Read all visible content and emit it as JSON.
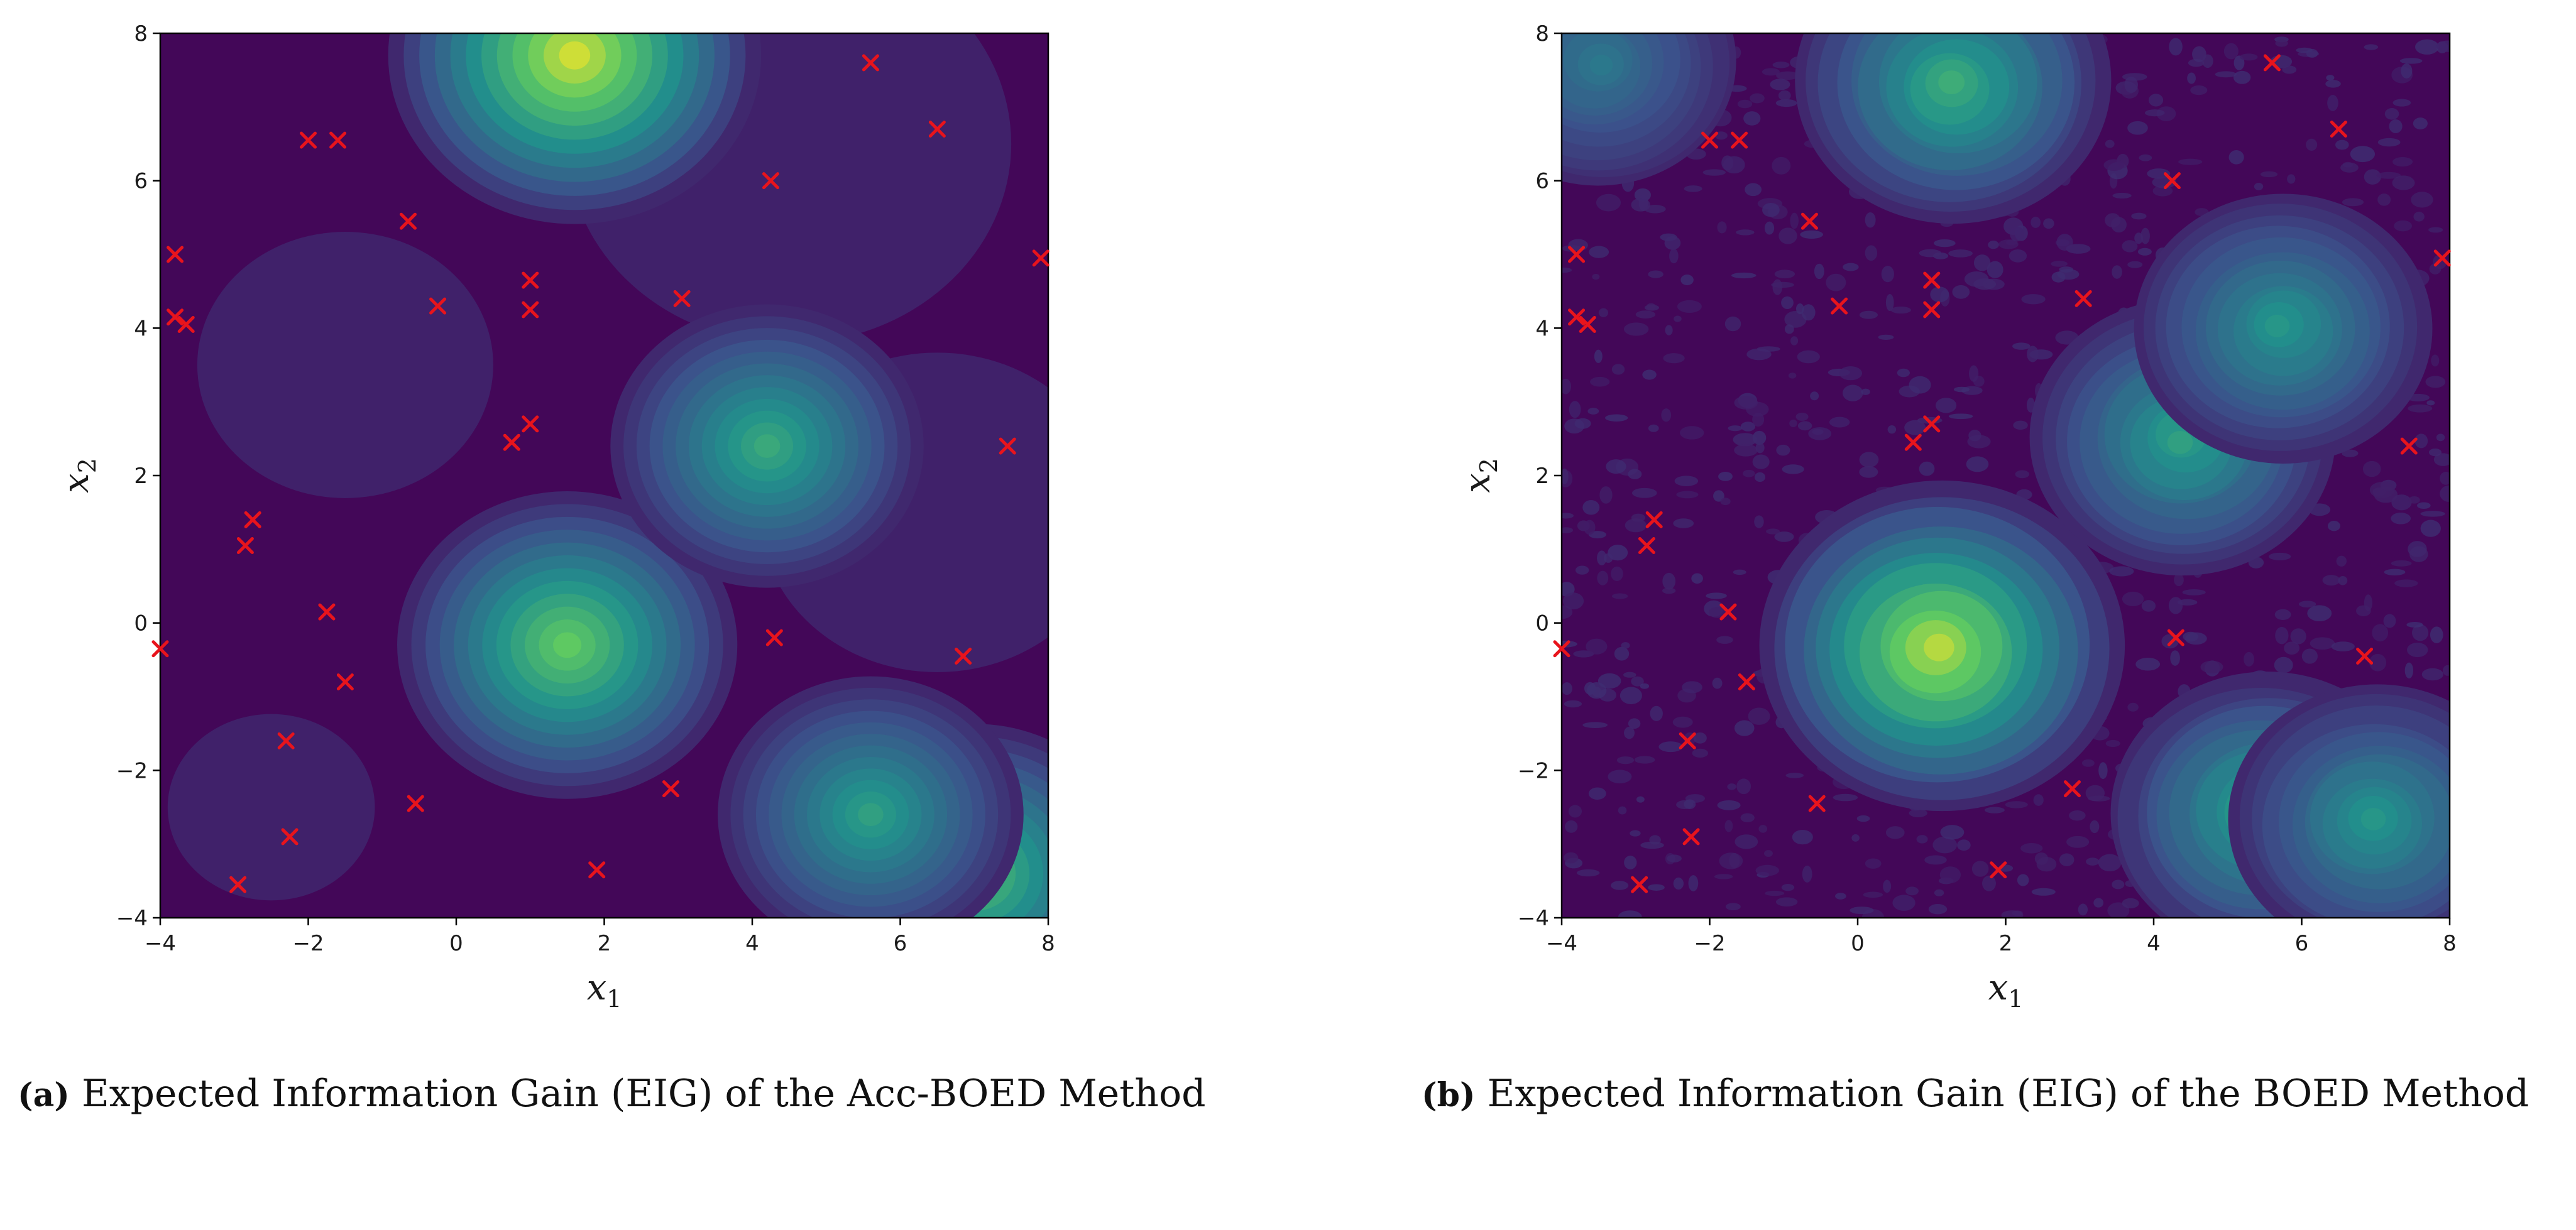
{
  "chart_data": [
    {
      "type": "heatmap",
      "panel": "a",
      "caption_tag": "(a)",
      "caption": "Expected Information Gain (EIG) of the Acc-BOED Method",
      "xlabel": "x1",
      "ylabel": "x2",
      "xlim": [
        -4,
        8
      ],
      "ylim": [
        -4,
        8
      ],
      "xticks": [
        "−4",
        "−2",
        "0",
        "2",
        "4",
        "6",
        "8"
      ],
      "yticks": [
        "−4",
        "−2",
        "0",
        "2",
        "4",
        "6",
        "8"
      ],
      "colormap": "viridis",
      "smooth": true,
      "eig_peaks": [
        {
          "x": 1.6,
          "y": 7.7,
          "value": 1.0
        },
        {
          "x": 1.5,
          "y": -0.3,
          "value": 0.78
        },
        {
          "x": 4.2,
          "y": 2.4,
          "value": 0.6
        },
        {
          "x": 7.0,
          "y": -3.4,
          "value": 0.72
        },
        {
          "x": 5.6,
          "y": -2.6,
          "value": 0.55
        }
      ],
      "design_points_marker": "x",
      "design_points_color": "#e8141c",
      "design_points": [
        [
          5.6,
          7.6
        ],
        [
          -2.0,
          6.55
        ],
        [
          -1.6,
          6.55
        ],
        [
          6.5,
          6.7
        ],
        [
          4.25,
          6.0
        ],
        [
          -0.65,
          5.45
        ],
        [
          -3.8,
          5.0
        ],
        [
          7.9,
          4.95
        ],
        [
          1.0,
          4.65
        ],
        [
          3.05,
          4.4
        ],
        [
          -0.25,
          4.3
        ],
        [
          1.0,
          4.25
        ],
        [
          -3.8,
          4.15
        ],
        [
          -3.65,
          4.05
        ],
        [
          1.0,
          2.7
        ],
        [
          0.75,
          2.45
        ],
        [
          7.45,
          2.4
        ],
        [
          -2.75,
          1.4
        ],
        [
          -2.85,
          1.05
        ],
        [
          -1.75,
          0.15
        ],
        [
          -4.0,
          -0.35
        ],
        [
          4.3,
          -0.2
        ],
        [
          6.85,
          -0.45
        ],
        [
          -1.5,
          -0.8
        ],
        [
          -2.3,
          -1.6
        ],
        [
          2.9,
          -2.25
        ],
        [
          -0.55,
          -2.45
        ],
        [
          -2.25,
          -2.9
        ],
        [
          1.9,
          -3.35
        ],
        [
          -2.95,
          -3.55
        ]
      ]
    },
    {
      "type": "heatmap",
      "panel": "b",
      "caption_tag": "(b)",
      "caption": "Expected Information Gain (EIG) of the BOED Method",
      "xlabel": "x1",
      "ylabel": "x2",
      "xlim": [
        -4,
        8
      ],
      "ylim": [
        -4,
        8
      ],
      "xticks": [
        "−4",
        "−2",
        "0",
        "2",
        "4",
        "6",
        "8"
      ],
      "yticks": [
        "−4",
        "−2",
        "0",
        "2",
        "4",
        "6",
        "8"
      ],
      "colormap": "viridis",
      "smooth": false,
      "eig_peaks": [
        {
          "x": 1.3,
          "y": 7.3,
          "value": 0.62
        },
        {
          "x": 1.1,
          "y": -0.35,
          "value": 0.95
        },
        {
          "x": 4.4,
          "y": 2.5,
          "value": 0.55
        },
        {
          "x": 5.7,
          "y": 4.0,
          "value": 0.5
        },
        {
          "x": 5.5,
          "y": -2.6,
          "value": 0.6
        },
        {
          "x": 7.0,
          "y": -2.7,
          "value": 0.5
        },
        {
          "x": -3.5,
          "y": 7.6,
          "value": 0.35
        }
      ],
      "design_points_marker": "x",
      "design_points_color": "#e8141c",
      "design_points": [
        [
          5.6,
          7.6
        ],
        [
          -2.0,
          6.55
        ],
        [
          -1.6,
          6.55
        ],
        [
          6.5,
          6.7
        ],
        [
          4.25,
          6.0
        ],
        [
          -0.65,
          5.45
        ],
        [
          -3.8,
          5.0
        ],
        [
          7.9,
          4.95
        ],
        [
          1.0,
          4.65
        ],
        [
          3.05,
          4.4
        ],
        [
          -0.25,
          4.3
        ],
        [
          1.0,
          4.25
        ],
        [
          -3.8,
          4.15
        ],
        [
          -3.65,
          4.05
        ],
        [
          1.0,
          2.7
        ],
        [
          0.75,
          2.45
        ],
        [
          7.45,
          2.4
        ],
        [
          -2.75,
          1.4
        ],
        [
          -2.85,
          1.05
        ],
        [
          -1.75,
          0.15
        ],
        [
          -4.0,
          -0.35
        ],
        [
          4.3,
          -0.2
        ],
        [
          6.85,
          -0.45
        ],
        [
          -1.5,
          -0.8
        ],
        [
          -2.3,
          -1.6
        ],
        [
          2.9,
          -2.25
        ],
        [
          -0.55,
          -2.45
        ],
        [
          -2.25,
          -2.9
        ],
        [
          1.9,
          -3.35
        ],
        [
          -2.95,
          -3.55
        ]
      ]
    }
  ]
}
